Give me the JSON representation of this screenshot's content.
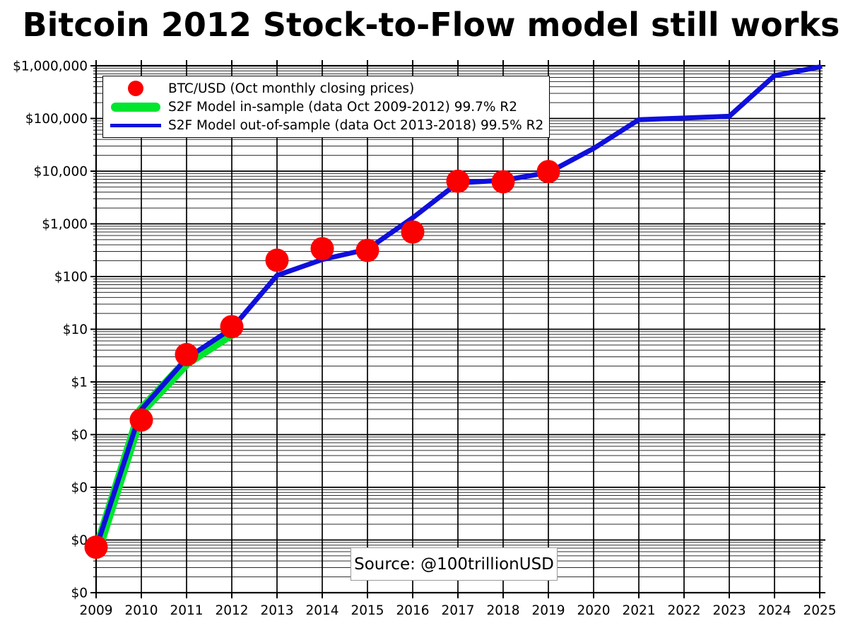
{
  "title": "Bitcoin 2012 Stock-to-Flow model still works",
  "source_label": "Source: @100trillionUSD",
  "legend": {
    "items": [
      {
        "marker": "scatter-dot",
        "color": "#fa0000",
        "label": "BTC/USD (Oct monthly closing prices)"
      },
      {
        "marker": "thick-line",
        "color": "#00e62e",
        "label": "S2F Model in-sample (data Oct 2009-2012) 99.7% R2"
      },
      {
        "marker": "thin-line",
        "color": "#0f0fdc",
        "label": "S2F Model out-of-sample (data Oct 2013-2018) 99.5% R2"
      }
    ]
  },
  "chart_data": {
    "type": "line",
    "title": "Bitcoin 2012 Stock-to-Flow model still works",
    "x_axis": {
      "ticks": [
        2009,
        2010,
        2011,
        2012,
        2013,
        2014,
        2015,
        2016,
        2017,
        2018,
        2019,
        2020,
        2021,
        2022,
        2023,
        2024,
        2025
      ],
      "range": [
        2009,
        2025
      ]
    },
    "y_axis": {
      "scale": "log",
      "range": [
        0.0001,
        1000000
      ],
      "tick_labels": [
        "$1,000,000",
        "$100,000",
        "$10,000",
        "$1,000",
        "$100",
        "$10",
        "$1",
        "$0",
        "$0",
        "$0",
        "$0"
      ],
      "tick_values": [
        1000000,
        100000,
        10000,
        1000,
        100,
        10,
        1,
        0.1,
        0.01,
        0.001,
        0.0001
      ]
    },
    "grid": {
      "major": true,
      "minor": true
    },
    "series": [
      {
        "name": "BTC/USD (Oct monthly closing prices)",
        "type": "scatter",
        "color": "#fa0000",
        "marker_radius": 16.5,
        "points": [
          [
            2009,
            0.00073
          ],
          [
            2010,
            0.19
          ],
          [
            2011,
            3.3
          ],
          [
            2012,
            11.2
          ],
          [
            2013,
            204
          ],
          [
            2014,
            338
          ],
          [
            2015,
            314
          ],
          [
            2016,
            700
          ],
          [
            2017,
            6450
          ],
          [
            2018,
            6300
          ],
          [
            2019,
            9800
          ]
        ]
      },
      {
        "name": "S2F Model in-sample (data Oct 2009-2012) 99.7% R2",
        "type": "line",
        "color": "#00e62e",
        "stroke_width": 15,
        "points": [
          [
            2009,
            0.00055
          ],
          [
            2010,
            0.285
          ],
          [
            2011,
            2.35
          ],
          [
            2012,
            8.5
          ]
        ]
      },
      {
        "name": "S2F Model out-of-sample (data Oct 2013-2018) 99.5% R2",
        "type": "line",
        "color": "#0f0fdc",
        "stroke_width": 7,
        "points": [
          [
            2009,
            0.0007
          ],
          [
            2010,
            0.3
          ],
          [
            2011,
            2.8
          ],
          [
            2012,
            10.3
          ],
          [
            2013,
            105
          ],
          [
            2014,
            210
          ],
          [
            2015,
            330
          ],
          [
            2016,
            1300
          ],
          [
            2017,
            6000
          ],
          [
            2018,
            6700
          ],
          [
            2019,
            9400
          ],
          [
            2020,
            27000
          ],
          [
            2021,
            95000
          ],
          [
            2022,
            102000
          ],
          [
            2023,
            110000
          ],
          [
            2024,
            650000
          ],
          [
            2025,
            950000
          ]
        ]
      }
    ]
  },
  "colors": {
    "background": "#ffffff",
    "grid_major": "#000000",
    "grid_minor": "#2b2b2b",
    "axis": "#000000"
  }
}
